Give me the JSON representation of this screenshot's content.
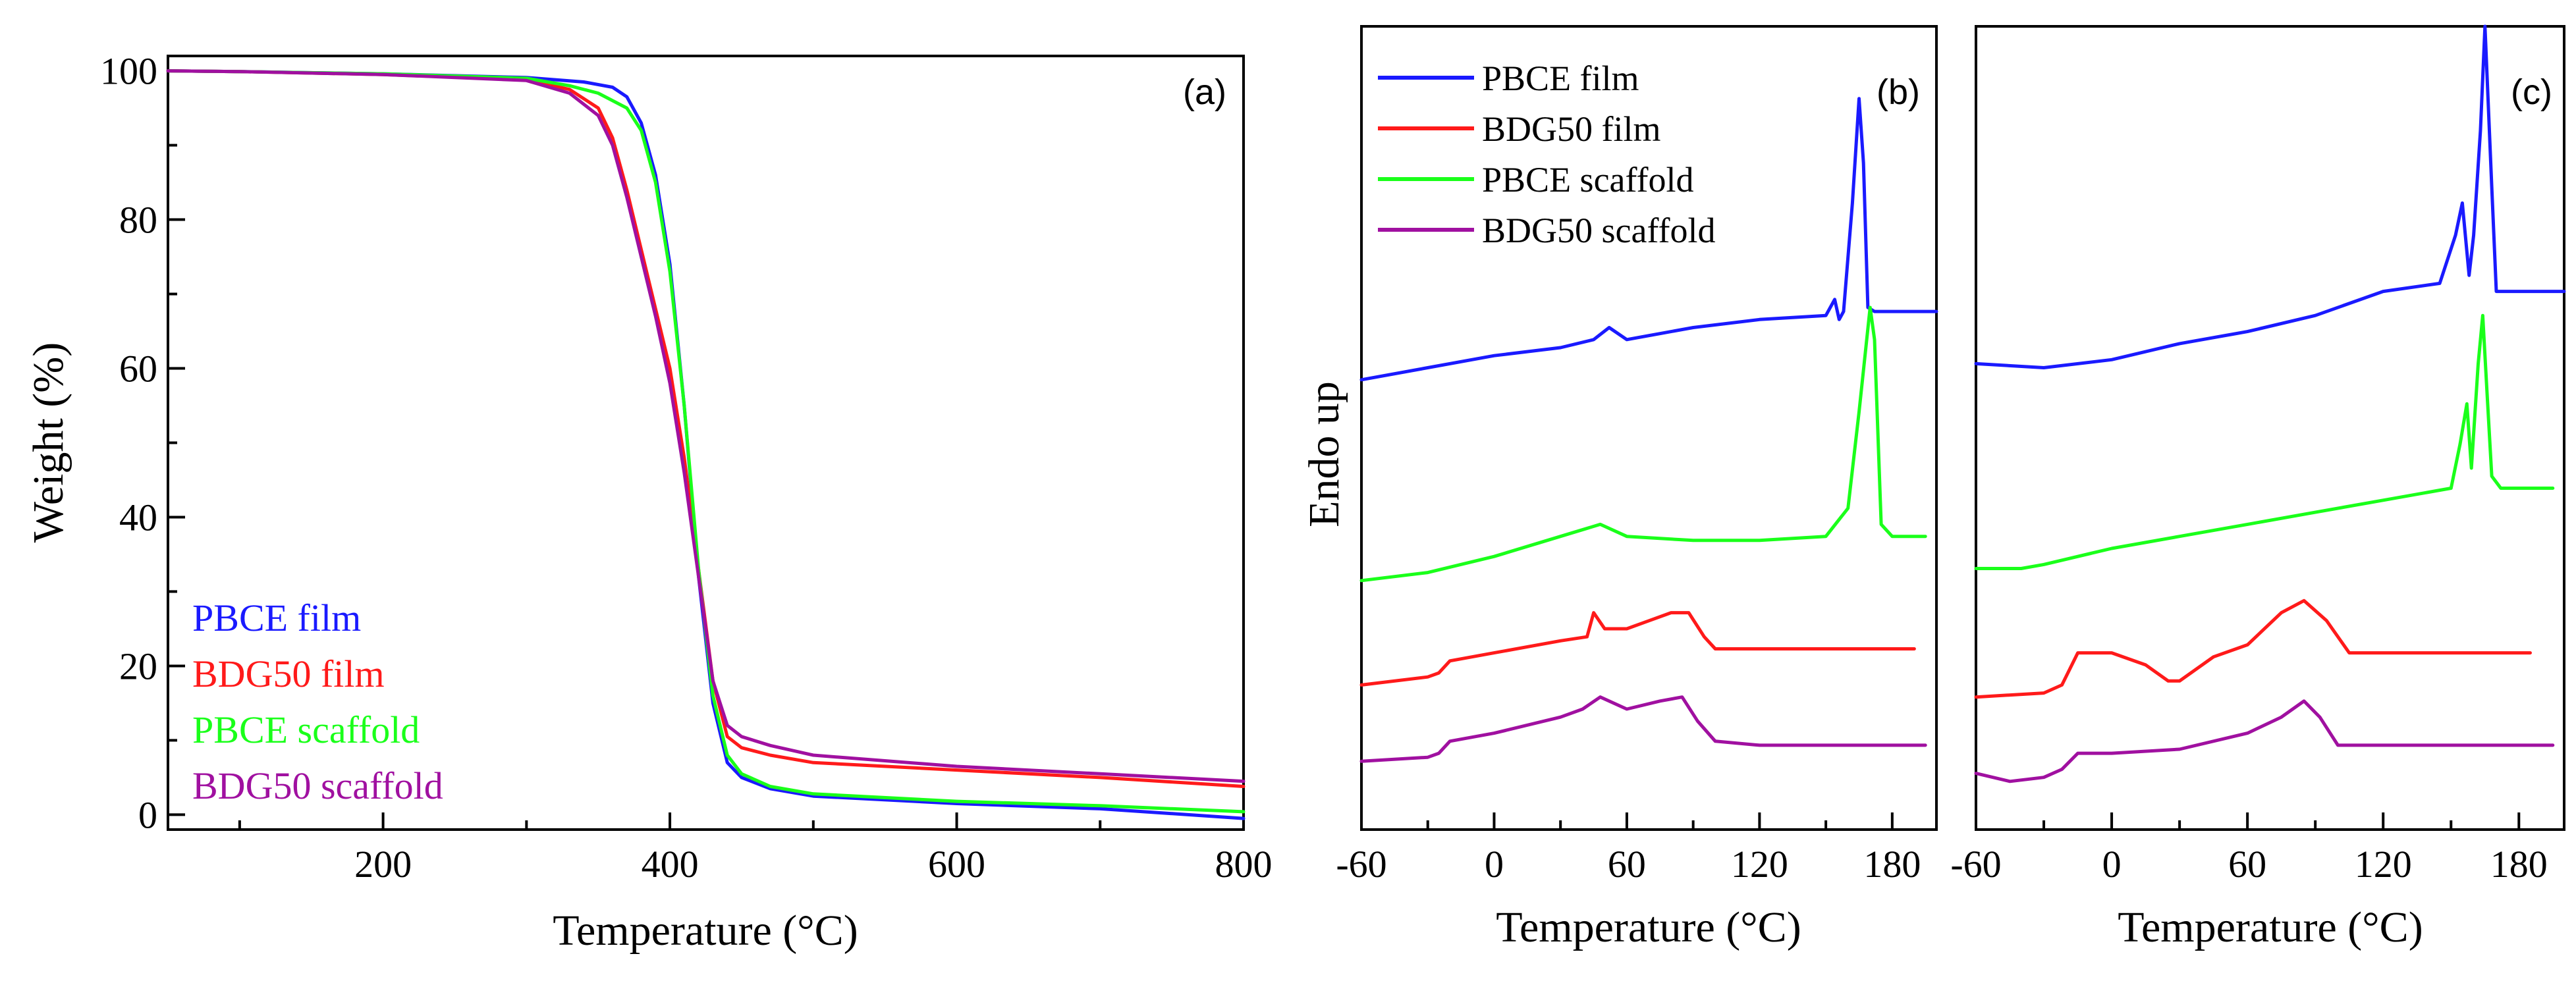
{
  "chart_data": [
    {
      "type": "line",
      "panel_label": "(a)",
      "xlabel": "Temperature (°C)",
      "ylabel": "Weight (%)",
      "xlim": [
        50,
        800
      ],
      "ylim": [
        -2,
        102
      ],
      "xticks": [
        200,
        400,
        600,
        800
      ],
      "yticks": [
        0,
        20,
        40,
        60,
        80,
        100
      ],
      "legend_position": "bottom-left",
      "series": [
        {
          "name": "PBCE film",
          "color": "#1a1aff",
          "x": [
            50,
            100,
            200,
            300,
            340,
            360,
            370,
            380,
            390,
            400,
            410,
            420,
            430,
            440,
            450,
            470,
            500,
            600,
            700,
            800
          ],
          "y": [
            100,
            99.9,
            99.6,
            99.1,
            98.5,
            97.8,
            96.5,
            93,
            86,
            74,
            55,
            32,
            15,
            7,
            5,
            3.5,
            2.5,
            1.5,
            0.8,
            -0.5
          ]
        },
        {
          "name": "BDG50 film",
          "color": "#ff1a1a",
          "x": [
            50,
            100,
            200,
            300,
            330,
            350,
            360,
            370,
            380,
            390,
            400,
            410,
            420,
            430,
            440,
            450,
            470,
            500,
            600,
            700,
            800
          ],
          "y": [
            100,
            99.9,
            99.5,
            98.8,
            97.5,
            95,
            91,
            84,
            76,
            68,
            60,
            48,
            33,
            18,
            10.5,
            9,
            8,
            7,
            6,
            5,
            3.8
          ]
        },
        {
          "name": "PBCE scaffold",
          "color": "#1aff1a",
          "x": [
            50,
            100,
            200,
            300,
            330,
            350,
            370,
            380,
            390,
            400,
            410,
            420,
            430,
            440,
            450,
            470,
            500,
            600,
            700,
            800
          ],
          "y": [
            100,
            99.9,
            99.6,
            99,
            98,
            97,
            95,
            92,
            85,
            73,
            55,
            33,
            16,
            8,
            5.5,
            3.8,
            2.8,
            1.8,
            1.2,
            0.4
          ]
        },
        {
          "name": "BDG50 scaffold",
          "color": "#a010a0",
          "x": [
            50,
            100,
            200,
            300,
            330,
            350,
            360,
            370,
            380,
            390,
            400,
            410,
            420,
            430,
            440,
            450,
            470,
            500,
            600,
            700,
            800
          ],
          "y": [
            100,
            99.9,
            99.5,
            98.7,
            97,
            94,
            90,
            83,
            75,
            67,
            58,
            46,
            32,
            18,
            12,
            10.5,
            9.3,
            8,
            6.5,
            5.5,
            4.5
          ]
        }
      ]
    },
    {
      "type": "line",
      "panel_label": "(b)",
      "xlabel": "Temperature (°C)",
      "ylabel": "Endo up",
      "xlim": [
        -60,
        200
      ],
      "ylim": [
        0,
        100
      ],
      "xticks": [
        -60,
        0,
        60,
        120,
        180
      ],
      "yticks": [],
      "legend_position": "top-left",
      "series": [
        {
          "name": "PBCE film",
          "color": "#1a1aff",
          "x": [
            -60,
            -30,
            0,
            30,
            45,
            52,
            60,
            90,
            120,
            150,
            154,
            156,
            158,
            162,
            165,
            167,
            169,
            172,
            180,
            200
          ],
          "y": [
            56,
            57.5,
            59,
            60,
            61,
            62.5,
            61,
            62.5,
            63.5,
            64,
            66,
            63.5,
            64.5,
            78,
            91,
            83,
            65,
            64.5,
            64.5,
            64.5
          ]
        },
        {
          "name": "BDG50 film",
          "color": "#ff1a1a",
          "x": [
            -60,
            -30,
            -25,
            -20,
            0,
            30,
            42,
            45,
            50,
            60,
            70,
            80,
            88,
            95,
            100,
            120,
            150,
            190
          ],
          "y": [
            18,
            19,
            19.5,
            21,
            22,
            23.5,
            24,
            27,
            25,
            25,
            26,
            27,
            27,
            24,
            22.5,
            22.5,
            22.5,
            22.5
          ]
        },
        {
          "name": "PBCE scaffold",
          "color": "#1aff1a",
          "x": [
            -60,
            -30,
            0,
            30,
            48,
            60,
            90,
            120,
            150,
            160,
            165,
            170,
            172,
            175,
            180,
            195
          ],
          "y": [
            31,
            32,
            34,
            36.5,
            38,
            36.5,
            36,
            36,
            36.5,
            40,
            52,
            65,
            61,
            38,
            36.5,
            36.5
          ]
        },
        {
          "name": "BDG50 scaffold",
          "color": "#a010a0",
          "x": [
            -60,
            -30,
            -25,
            -20,
            0,
            30,
            40,
            48,
            60,
            75,
            85,
            92,
            100,
            120,
            150,
            195
          ],
          "y": [
            8.5,
            9,
            9.5,
            11,
            12,
            14,
            15,
            16.5,
            15,
            16,
            16.5,
            13.5,
            11,
            10.5,
            10.5,
            10.5
          ]
        }
      ]
    },
    {
      "type": "line",
      "panel_label": "(c)",
      "xlabel": "Temperature (°C)",
      "ylabel": "",
      "xlim": [
        -60,
        200
      ],
      "ylim": [
        0,
        100
      ],
      "xticks": [
        -60,
        0,
        60,
        120,
        180
      ],
      "yticks": [],
      "legend_position": "none",
      "series": [
        {
          "name": "PBCE film",
          "color": "#1a1aff",
          "x": [
            -60,
            -30,
            0,
            30,
            60,
            90,
            120,
            145,
            152,
            155,
            158,
            160,
            163,
            165,
            168,
            170,
            180,
            200
          ],
          "y": [
            58,
            57.5,
            58.5,
            60.5,
            62,
            64,
            67,
            68,
            74,
            78,
            69,
            74,
            87,
            100,
            80,
            67,
            67,
            67
          ]
        },
        {
          "name": "PBCE scaffold",
          "color": "#1aff1a",
          "x": [
            -60,
            -40,
            -30,
            0,
            30,
            60,
            90,
            120,
            150,
            154,
            157,
            159,
            162,
            164,
            166,
            168,
            172,
            195
          ],
          "y": [
            32.5,
            32.5,
            33,
            35,
            36.5,
            38,
            39.5,
            41,
            42.5,
            48,
            53,
            45,
            58,
            64,
            54,
            44,
            42.5,
            42.5
          ]
        },
        {
          "name": "BDG50 film",
          "color": "#ff1a1a",
          "x": [
            -60,
            -30,
            -22,
            -15,
            0,
            15,
            25,
            30,
            45,
            60,
            75,
            85,
            95,
            105,
            120,
            150,
            185
          ],
          "y": [
            16.5,
            17,
            18,
            22,
            22,
            20.5,
            18.5,
            18.5,
            21.5,
            23,
            27,
            28.5,
            26,
            22,
            22,
            22,
            22
          ]
        },
        {
          "name": "BDG50 scaffold",
          "color": "#a010a0",
          "x": [
            -60,
            -45,
            -30,
            -22,
            -15,
            0,
            30,
            60,
            75,
            85,
            92,
            100,
            110,
            130,
            160,
            195
          ],
          "y": [
            7,
            6,
            6.5,
            7.5,
            9.5,
            9.5,
            10,
            12,
            14,
            16,
            14,
            10.5,
            10.5,
            10.5,
            10.5,
            10.5
          ]
        }
      ]
    }
  ]
}
